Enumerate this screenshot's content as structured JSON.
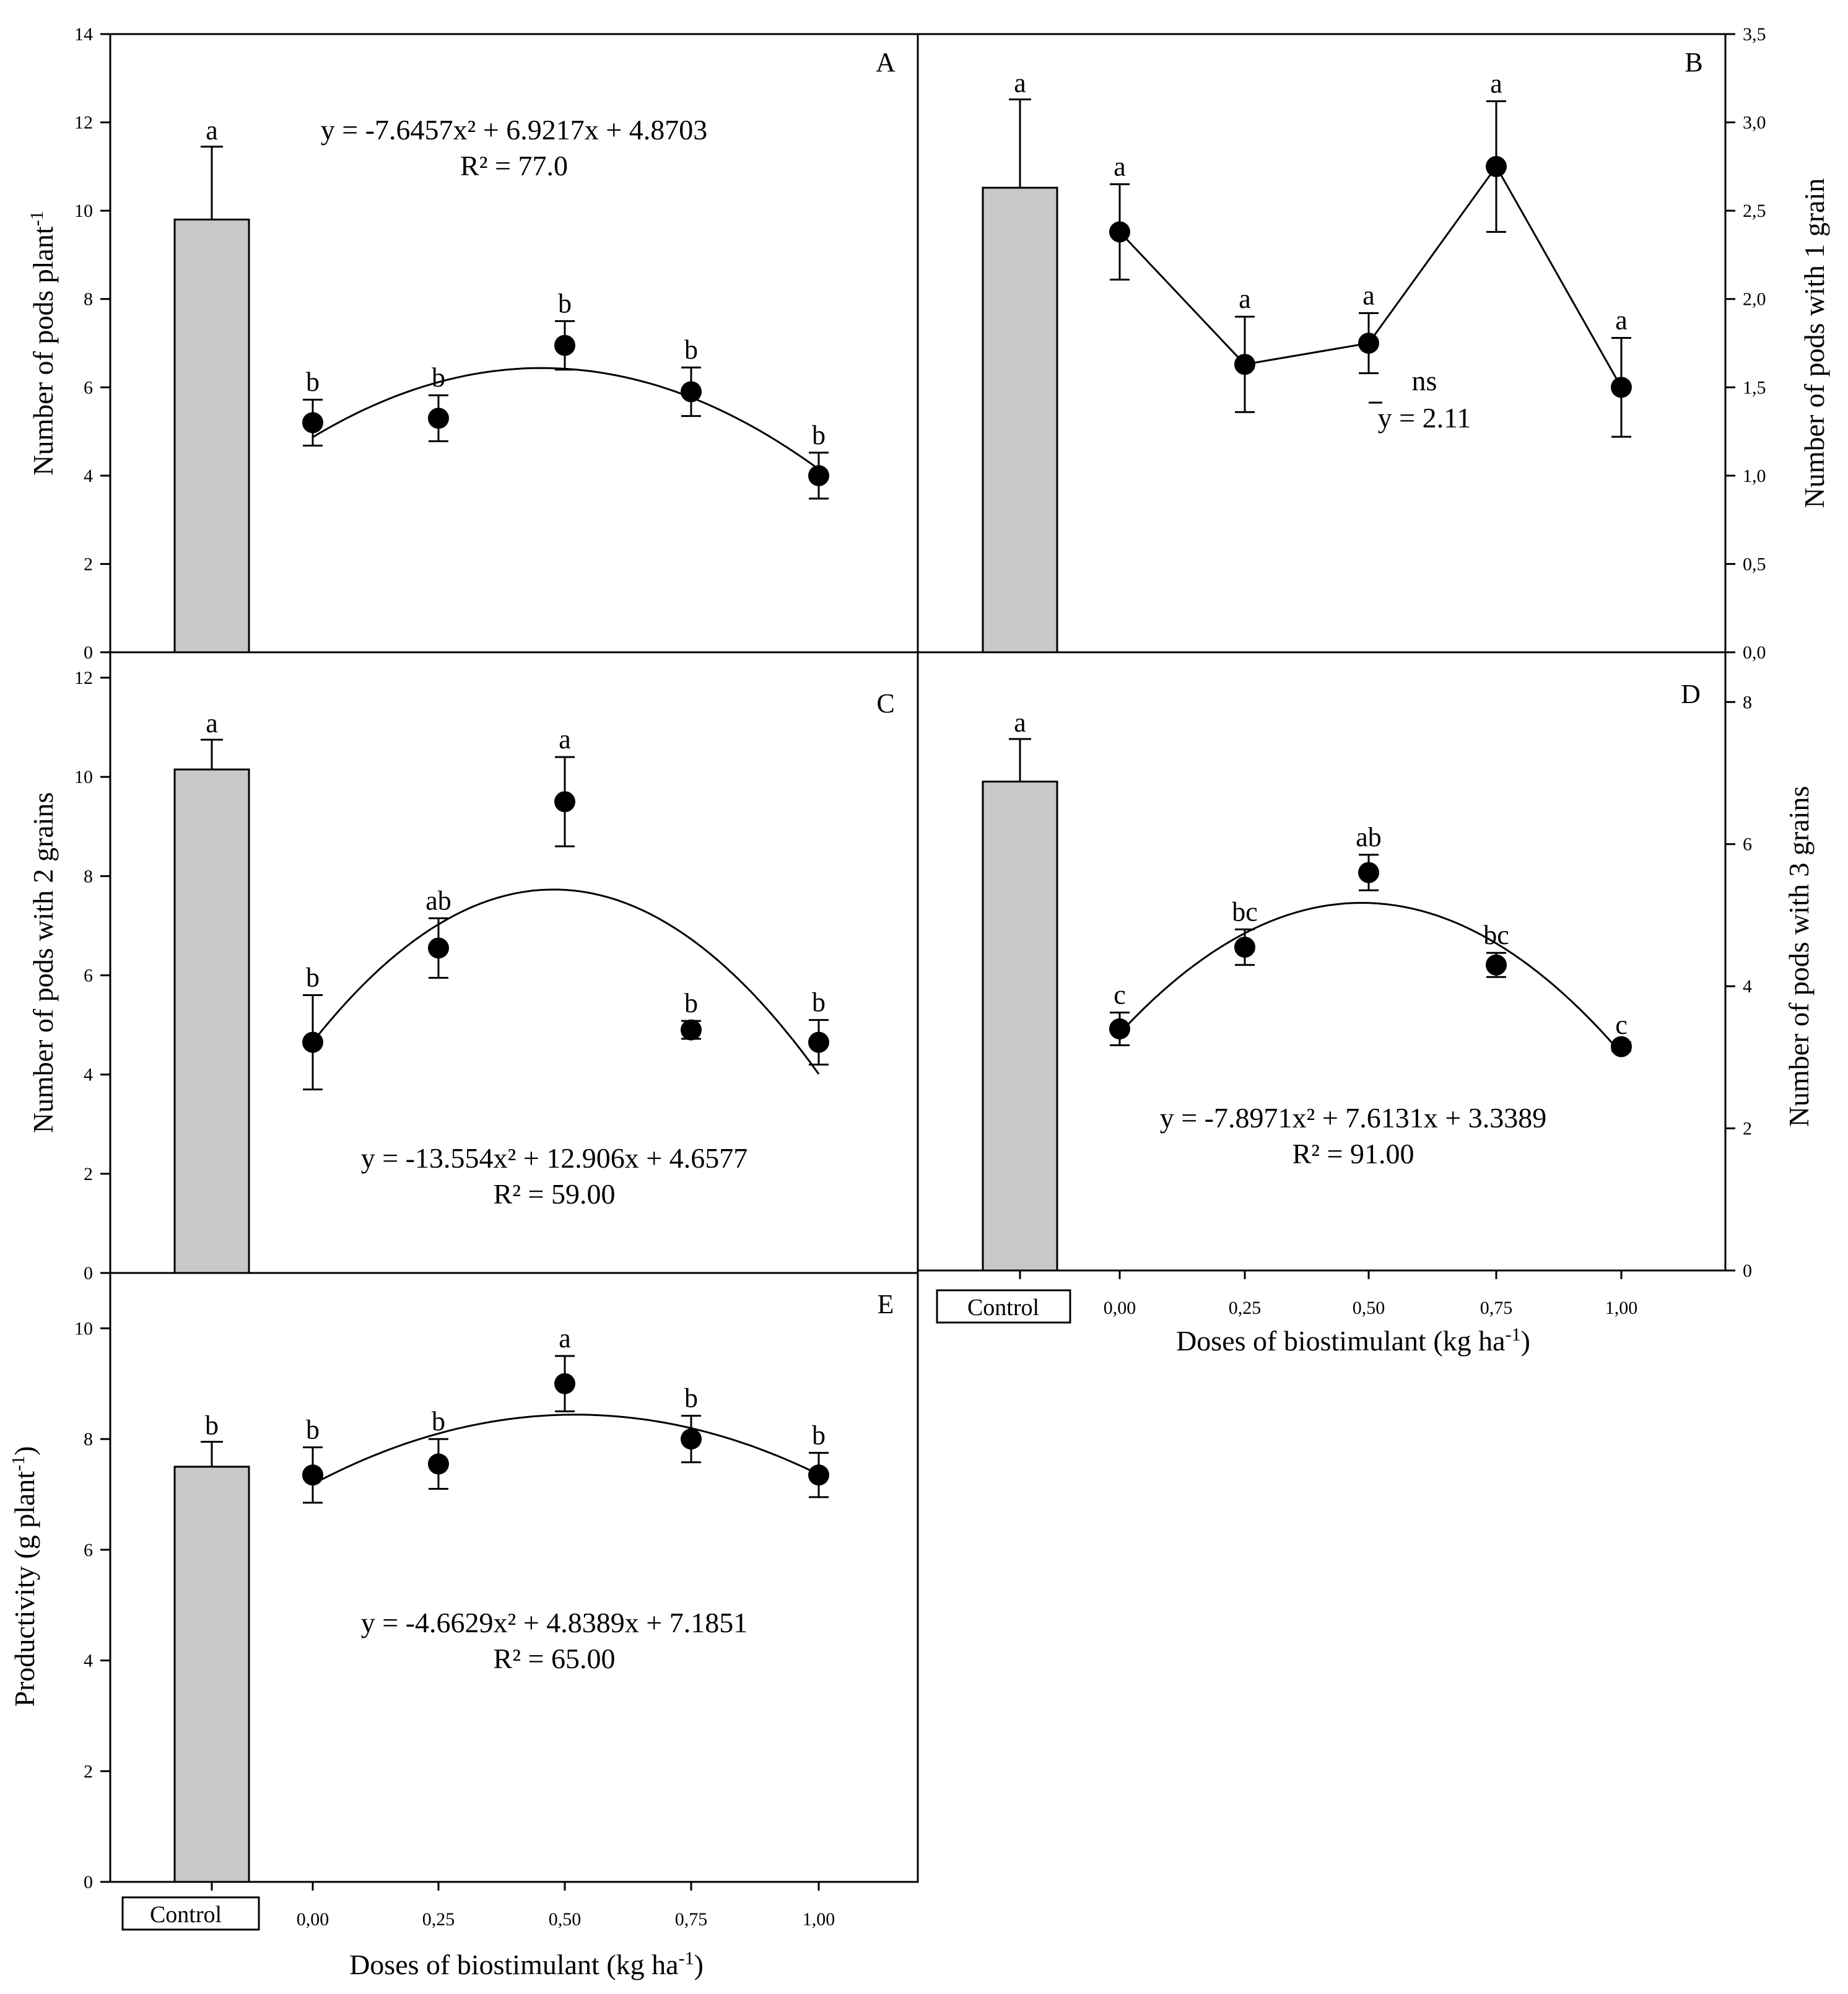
{
  "colors": {
    "bar": "#c8c8c8",
    "ink": "#000000",
    "background": "#ffffff"
  },
  "x_axis": {
    "label_main": "Doses of biostimulant (kg ha",
    "label_sup": "-1",
    "label_close": ")",
    "control_label": "Control",
    "tick_labels": [
      "0,00",
      "0,25",
      "0,50",
      "0,75",
      "1,00"
    ]
  },
  "chart_data": [
    {
      "panel": "A",
      "type": "bar+scatter+curve",
      "ylabel_main": "Number of pods plant",
      "ylabel_sup": "-1",
      "y_side": "left",
      "ylim": [
        0,
        14
      ],
      "yticks": [
        0,
        2,
        4,
        6,
        8,
        10,
        12,
        14
      ],
      "ytick_labels": [
        "0",
        "2",
        "4",
        "6",
        "8",
        "10",
        "12",
        "14"
      ],
      "control": {
        "value": 9.8,
        "error": 1.65,
        "letter": "a"
      },
      "doses": [
        0,
        0.25,
        0.5,
        0.75,
        1.0
      ],
      "means": [
        5.2,
        5.3,
        6.95,
        5.9,
        4.0
      ],
      "errors": [
        0.52,
        0.52,
        0.55,
        0.55,
        0.52
      ],
      "letters": [
        "b",
        "b",
        "b",
        "b",
        "b"
      ],
      "curve": {
        "a": -7.6457,
        "b": 6.9217,
        "c": 4.8703
      },
      "equation": "y = -7.6457x² + 6.9217x + 4.8703",
      "r2": "R² = 77.0"
    },
    {
      "panel": "B",
      "type": "bar+scatter+line",
      "ylabel": "Number of pods with 1 grain",
      "y_side": "right",
      "ylim": [
        0,
        3.5
      ],
      "yticks": [
        0,
        0.5,
        1.0,
        1.5,
        2.0,
        2.5,
        3.0,
        3.5
      ],
      "ytick_labels": [
        "0,0",
        "0,5",
        "1,0",
        "1,5",
        "2,0",
        "2,5",
        "3,0",
        "3,5"
      ],
      "control": {
        "value": 2.63,
        "error": 0.5,
        "letter": "a"
      },
      "doses": [
        0,
        0.25,
        0.5,
        0.75,
        1.0
      ],
      "means": [
        2.38,
        1.63,
        1.75,
        2.75,
        1.5
      ],
      "errors": [
        0.27,
        0.27,
        0.17,
        0.37,
        0.28
      ],
      "letters": [
        "a",
        "a",
        "a",
        "a",
        "a"
      ],
      "ns": "ns",
      "mean_label": "y = 2.11"
    },
    {
      "panel": "C",
      "type": "bar+scatter+curve",
      "ylabel": "Number of pods with 2 grains",
      "y_side": "left",
      "ylim": [
        0,
        12
      ],
      "yticks": [
        0,
        2,
        4,
        6,
        8,
        10,
        12
      ],
      "ytick_labels": [
        "0",
        "2",
        "4",
        "6",
        "8",
        "10",
        "12"
      ],
      "control": {
        "value": 10.15,
        "error": 0.6,
        "letter": "a"
      },
      "doses": [
        0,
        0.25,
        0.5,
        0.75,
        1.0
      ],
      "means": [
        4.65,
        6.55,
        9.5,
        4.9,
        4.65
      ],
      "errors": [
        0.95,
        0.6,
        0.9,
        0.18,
        0.45
      ],
      "letters": [
        "b",
        "ab",
        "a",
        "b",
        "b"
      ],
      "curve": {
        "a": -13.554,
        "b": 12.906,
        "c": 4.6577
      },
      "equation": "y = -13.554x² + 12.906x + 4.6577",
      "r2": "R² = 59.00"
    },
    {
      "panel": "D",
      "type": "bar+scatter+curve",
      "ylabel": "Number of pods with 3 grains",
      "y_side": "right",
      "ylim": [
        0,
        8.7
      ],
      "yticks": [
        0,
        2,
        4,
        6,
        8
      ],
      "ytick_labels": [
        "0",
        "2",
        "4",
        "6",
        "8"
      ],
      "control": {
        "value": 6.88,
        "error": 0.6,
        "letter": "a"
      },
      "doses": [
        0,
        0.25,
        0.5,
        0.75,
        1.0
      ],
      "means": [
        3.4,
        4.55,
        5.6,
        4.3,
        3.15
      ],
      "errors": [
        0.23,
        0.25,
        0.25,
        0.17,
        0.06
      ],
      "letters": [
        "c",
        "bc",
        "ab",
        "bc",
        "c"
      ],
      "curve": {
        "a": -7.8971,
        "b": 7.6131,
        "c": 3.3389
      },
      "equation": "y = -7.8971x² + 7.6131x + 3.3389",
      "r2": "R² = 91.00"
    },
    {
      "panel": "E",
      "type": "bar+scatter+curve",
      "ylabel_main": "Productivity (g plant",
      "ylabel_sup": "-1",
      "ylabel_close": ")",
      "y_side": "left",
      "ylim": [
        0,
        11
      ],
      "yticks": [
        0,
        2,
        4,
        6,
        8,
        10
      ],
      "ytick_labels": [
        "0",
        "2",
        "4",
        "6",
        "8",
        "10"
      ],
      "control": {
        "value": 7.5,
        "error": 0.45,
        "letter": "b"
      },
      "doses": [
        0,
        0.25,
        0.5,
        0.75,
        1.0
      ],
      "means": [
        7.35,
        7.55,
        9.0,
        8.0,
        7.35
      ],
      "errors": [
        0.5,
        0.45,
        0.5,
        0.42,
        0.4
      ],
      "letters": [
        "b",
        "b",
        "a",
        "b",
        "b"
      ],
      "curve": {
        "a": -4.6629,
        "b": 4.8389,
        "c": 7.1851
      },
      "equation": "y = -4.6629x² + 4.8389x + 7.1851",
      "r2": "R² = 65.00"
    }
  ]
}
